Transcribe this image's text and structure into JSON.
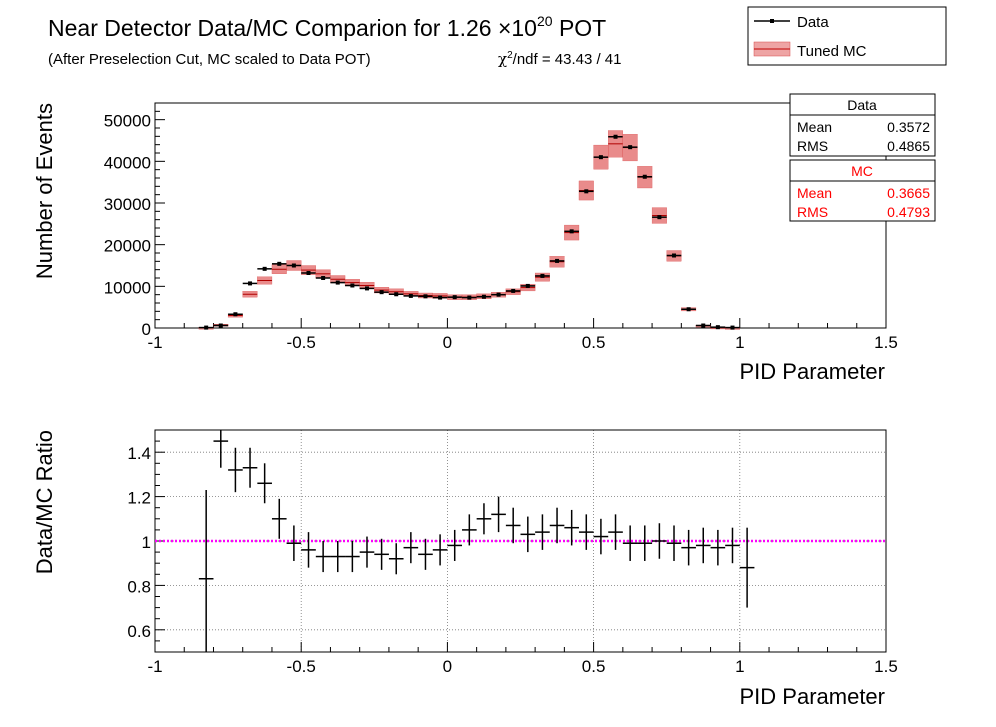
{
  "title": {
    "main_prefix": "Near Detector Data/MC Comparion for 1.26 ×10",
    "main_exponent": "20",
    "main_suffix": " POT",
    "subtitle": "(After Preselection Cut, MC scaled to Data POT)",
    "chi2_symbol": "χ",
    "chi2_sup": "2",
    "chi2_text": "/ndf = 43.43 / 41"
  },
  "legend": {
    "data_label": "Data",
    "mc_label": "Tuned MC"
  },
  "stats": {
    "data": {
      "title": "Data",
      "mean_label": "Mean",
      "mean_value": "0.3572",
      "rms_label": "RMS",
      "rms_value": "0.4865"
    },
    "mc": {
      "title": "MC",
      "mean_label": "Mean",
      "mean_value": "0.3665",
      "rms_label": "RMS",
      "rms_value": "0.4793"
    }
  },
  "colors": {
    "data": "#000000",
    "mc_band": "#e05a5a",
    "ratio_line": "#ff00ff",
    "stats_mc_text": "#ff0000"
  },
  "chart_data": [
    {
      "type": "bar",
      "name": "distribution",
      "xlabel": "PID Parameter",
      "ylabel": "Number of Events",
      "xlim": [
        -1,
        1.5
      ],
      "ylim": [
        0,
        54000
      ],
      "xticks": [
        "-1",
        "-0.5",
        "0",
        "0.5",
        "1",
        "1.5"
      ],
      "yticks": [
        "0",
        "10000",
        "20000",
        "30000",
        "40000",
        "50000"
      ],
      "bin_width": 0.05,
      "x": [
        -0.825,
        -0.775,
        -0.725,
        -0.675,
        -0.625,
        -0.575,
        -0.525,
        -0.475,
        -0.425,
        -0.375,
        -0.325,
        -0.275,
        -0.225,
        -0.175,
        -0.125,
        -0.075,
        -0.025,
        0.025,
        0.075,
        0.125,
        0.175,
        0.225,
        0.275,
        0.325,
        0.375,
        0.425,
        0.475,
        0.525,
        0.575,
        0.625,
        0.675,
        0.725,
        0.775,
        0.825,
        0.875,
        0.925,
        0.975,
        1.025,
        1.075,
        1.125,
        1.175
      ],
      "series": [
        {
          "name": "Data",
          "values": [
            100,
            600,
            3300,
            10700,
            14200,
            15400,
            15000,
            13200,
            12000,
            10900,
            10200,
            9500,
            8600,
            8100,
            7700,
            7600,
            7300,
            7400,
            7300,
            7500,
            8000,
            8900,
            10100,
            12500,
            16100,
            23200,
            32800,
            41000,
            45900,
            43400,
            36300,
            26600,
            17400,
            4500,
            600,
            200,
            100,
            0,
            0,
            0,
            0
          ]
        },
        {
          "name": "Tuned MC",
          "values": [
            120,
            720,
            3000,
            8100,
            11400,
            14100,
            15000,
            13900,
            13000,
            11700,
            10900,
            10200,
            9100,
            8700,
            8200,
            7800,
            7700,
            7400,
            7400,
            7600,
            8000,
            8700,
            9700,
            12200,
            15900,
            22900,
            33000,
            41000,
            44200,
            43300,
            36200,
            27000,
            17300,
            4500,
            600,
            200,
            100,
            0,
            0,
            0,
            0
          ],
          "band_half_width": [
            50,
            150,
            400,
            700,
            900,
            1100,
            1200,
            1100,
            1000,
            900,
            800,
            800,
            700,
            700,
            600,
            600,
            600,
            600,
            600,
            600,
            600,
            700,
            800,
            1000,
            1300,
            1800,
            2300,
            2900,
            3200,
            3200,
            2600,
            1900,
            1300,
            400,
            100,
            50,
            30,
            0,
            0,
            0,
            0
          ]
        }
      ]
    },
    {
      "type": "scatter",
      "name": "ratio",
      "xlabel": "PID Parameter",
      "ylabel": "Data/MC Ratio",
      "xlim": [
        -1,
        1.5
      ],
      "ylim": [
        0.5,
        1.5
      ],
      "xticks": [
        "-1",
        "-0.5",
        "0",
        "0.5",
        "1",
        "1.5"
      ],
      "yticks": [
        "0.6",
        "0.8",
        "1",
        "1.2",
        "1.4"
      ],
      "reference_line": 1,
      "x": [
        -0.825,
        -0.775,
        -0.725,
        -0.675,
        -0.625,
        -0.575,
        -0.525,
        -0.475,
        -0.425,
        -0.375,
        -0.325,
        -0.275,
        -0.225,
        -0.175,
        -0.125,
        -0.075,
        -0.025,
        0.025,
        0.075,
        0.125,
        0.175,
        0.225,
        0.275,
        0.325,
        0.375,
        0.425,
        0.475,
        0.525,
        0.575,
        0.625,
        0.675,
        0.725,
        0.775,
        0.825,
        0.875,
        0.925,
        0.975,
        1.025
      ],
      "values": [
        0.83,
        1.45,
        1.32,
        1.33,
        1.26,
        1.1,
        0.99,
        0.96,
        0.93,
        0.93,
        0.93,
        0.95,
        0.94,
        0.92,
        0.97,
        0.94,
        0.96,
        0.98,
        1.05,
        1.1,
        1.12,
        1.07,
        1.03,
        1.04,
        1.07,
        1.06,
        1.04,
        1.02,
        1.04,
        0.99,
        0.99,
        1.0,
        0.99,
        0.97,
        0.98,
        0.97,
        0.98,
        0.88
      ],
      "errors": [
        0.4,
        0.12,
        0.1,
        0.09,
        0.09,
        0.09,
        0.08,
        0.08,
        0.07,
        0.07,
        0.07,
        0.07,
        0.07,
        0.07,
        0.07,
        0.07,
        0.07,
        0.07,
        0.07,
        0.07,
        0.08,
        0.08,
        0.08,
        0.08,
        0.08,
        0.08,
        0.08,
        0.08,
        0.08,
        0.08,
        0.08,
        0.08,
        0.08,
        0.08,
        0.08,
        0.08,
        0.08,
        0.18
      ]
    }
  ]
}
